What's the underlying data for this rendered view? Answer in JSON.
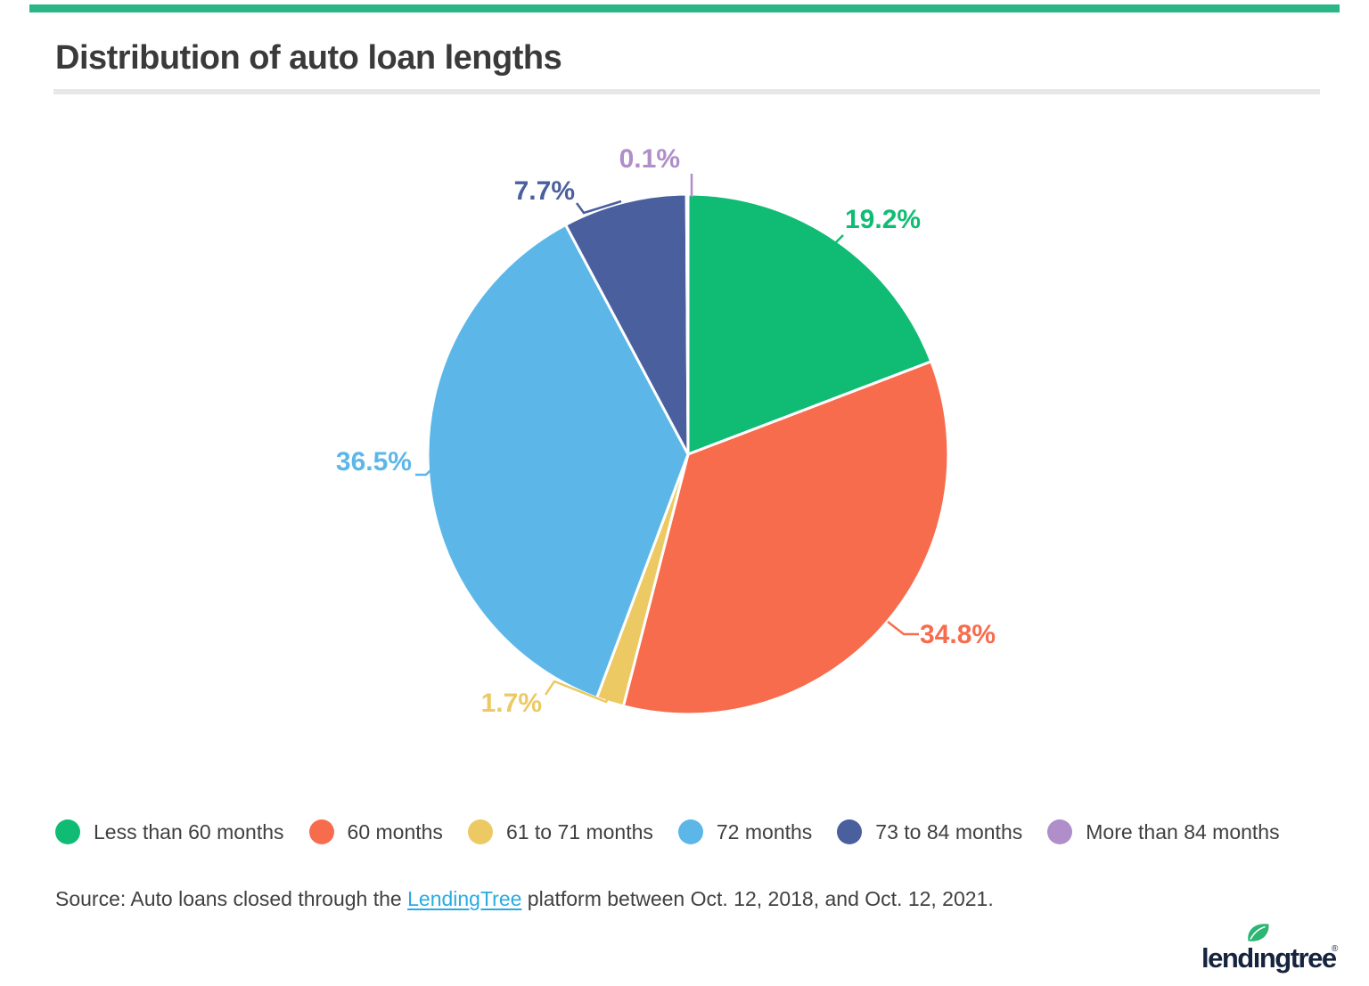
{
  "page": {
    "title": "Distribution of auto loan lengths"
  },
  "accent": {
    "top_bar_color": "#2bb687",
    "divider_color": "#e7e7e7",
    "title_color": "#3a3a3a"
  },
  "chart_data": {
    "type": "pie",
    "title": "Distribution of auto loan lengths",
    "categories": [
      "Less than 60 months",
      "60 months",
      "61 to 71 months",
      "72 months",
      "73 to 84 months",
      "More than 84 months"
    ],
    "values": [
      19.2,
      34.8,
      1.7,
      36.5,
      7.7,
      0.1
    ],
    "unit": "%",
    "colors": [
      "#10bc73",
      "#f86c4e",
      "#ecc963",
      "#5cb7e8",
      "#4a5f9e",
      "#af8ec9"
    ],
    "data_labels": [
      "19.2%",
      "34.8%",
      "1.7%",
      "36.5%",
      "7.7%",
      "0.1%"
    ],
    "start_angle_deg": 0,
    "direction": "clockwise",
    "legend_position": "bottom",
    "slice_border_color": "#ffffff"
  },
  "source": {
    "prefix": "Source: Auto loans closed through the ",
    "link_text": "LendingTree",
    "suffix": " platform between Oct. 12, 2018, and Oct. 12, 2021.",
    "link_color": "#29abe2"
  },
  "logo": {
    "text": "lendingtree",
    "registered": "®",
    "text_color": "#16243e",
    "leaf_color": "#2bb673"
  }
}
